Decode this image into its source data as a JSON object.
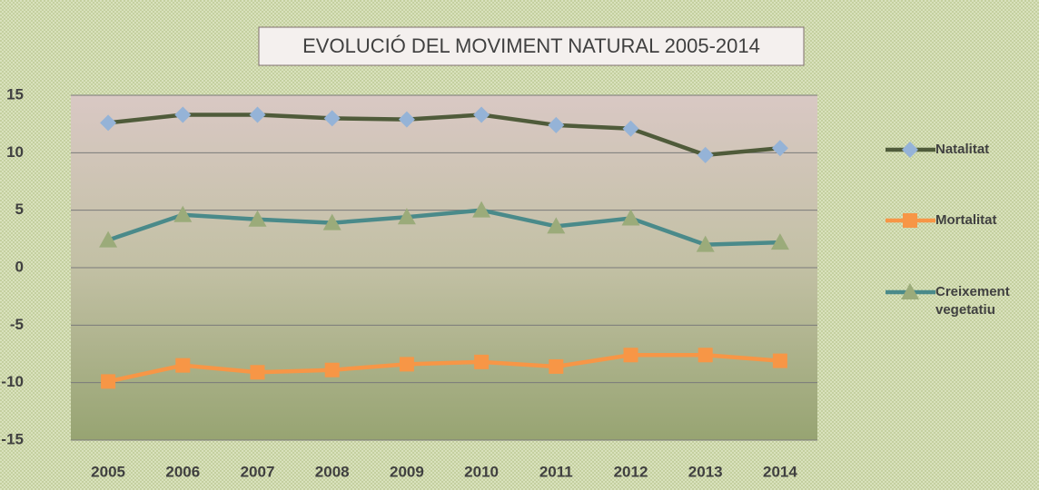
{
  "chart_data": {
    "type": "line",
    "title": "EVOLUCIÓ DEL MOVIMENT NATURAL 2005-2014",
    "categories": [
      "2005",
      "2006",
      "2007",
      "2008",
      "2009",
      "2010",
      "2011",
      "2012",
      "2013",
      "2014"
    ],
    "series": [
      {
        "name": "Natalitat",
        "color": "#4f5b3a",
        "marker_color": "#95b3d7",
        "marker": "diamond",
        "values": [
          12.6,
          13.3,
          13.3,
          13.0,
          12.9,
          13.3,
          12.4,
          12.1,
          9.8,
          10.4
        ]
      },
      {
        "name": "Mortalitat",
        "color": "#f79646",
        "marker_color": "#f79646",
        "marker": "square",
        "values": [
          -9.9,
          -8.5,
          -9.1,
          -8.9,
          -8.4,
          -8.2,
          -8.6,
          -7.6,
          -7.6,
          -8.1
        ]
      },
      {
        "name": "Creixement vegetatiu",
        "color": "#4a8a8a",
        "marker_color": "#9bab7a",
        "marker": "triangle",
        "values": [
          2.4,
          4.6,
          4.2,
          3.9,
          4.4,
          5.0,
          3.6,
          4.3,
          2.0,
          2.2
        ]
      }
    ],
    "ylim": [
      -15,
      15
    ],
    "yticks": [
      -15,
      -10,
      -5,
      0,
      5,
      10,
      15
    ],
    "grid": true,
    "legend": "right"
  }
}
